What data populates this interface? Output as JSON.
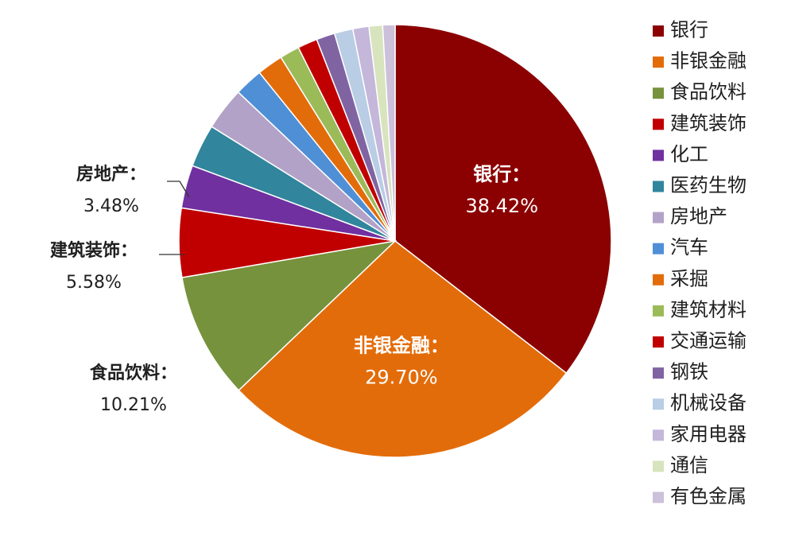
{
  "chart_data": {
    "type": "pie",
    "start": "top",
    "direction": "clockwise",
    "legend_position": "right",
    "slices": [
      {
        "name": "银行",
        "value": 38.42,
        "color": "#8B0000"
      },
      {
        "name": "非银金融",
        "value": 29.7,
        "color": "#E36C0A"
      },
      {
        "name": "食品饮料",
        "value": 10.21,
        "color": "#76923C"
      },
      {
        "name": "建筑装饰",
        "value": 5.58,
        "color": "#C00000"
      },
      {
        "name": "化工",
        "value": 3.48,
        "color": "#7030A0"
      },
      {
        "name": "医药生物",
        "value": 3.48,
        "color": "#31859C"
      },
      {
        "name": "房地产",
        "value": 3.48,
        "color": "#B3A2C7"
      },
      {
        "name": "汽车",
        "value": 2.3,
        "color": "#4F8FD6"
      },
      {
        "name": "采掘",
        "value": 2.1,
        "color": "#E36C0A"
      },
      {
        "name": "建筑材料",
        "value": 1.6,
        "color": "#9BBB59"
      },
      {
        "name": "交通运输",
        "value": 1.6,
        "color": "#C00000"
      },
      {
        "name": "钢铁",
        "value": 1.5,
        "color": "#8064A2"
      },
      {
        "name": "机械设备",
        "value": 1.5,
        "color": "#B9CDE5"
      },
      {
        "name": "家用电器",
        "value": 1.3,
        "color": "#C4B7DA"
      },
      {
        "name": "通信",
        "value": 1.1,
        "color": "#D7E4BD"
      },
      {
        "name": "有色金属",
        "value": 1.0,
        "color": "#CCC0DA"
      }
    ],
    "data_labels": [
      {
        "slice": "银行",
        "title": "银行：",
        "value": "38.42%",
        "placement": "inside"
      },
      {
        "slice": "非银金融",
        "title": "非银金融：",
        "value": "29.70%",
        "placement": "inside"
      },
      {
        "slice": "食品饮料",
        "title": "食品饮料：",
        "value": "10.21%",
        "placement": "outside"
      },
      {
        "slice": "建筑装饰",
        "title": "建筑装饰：",
        "value": "5.58%",
        "placement": "outside"
      },
      {
        "slice": "化工",
        "title": "房地产：",
        "value": "3.48%",
        "placement": "outside"
      }
    ]
  }
}
